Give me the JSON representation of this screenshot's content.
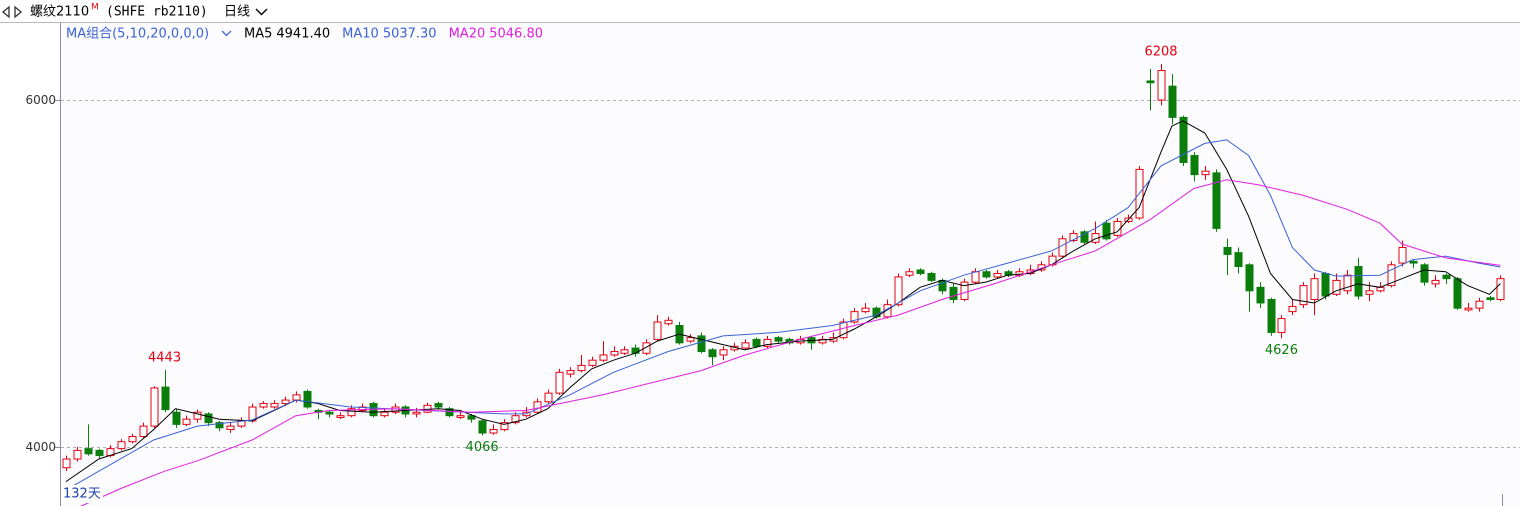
{
  "header": {
    "symbol": "螺纹2110",
    "badge": "M",
    "code": "(SHFE rb2110)",
    "period": "日线"
  },
  "chart_data": {
    "type": "candlestick",
    "legend_title": "MA组合(5,10,20,0,0,0)",
    "days_label": "132天",
    "up_color": "#e4000f",
    "down_color": "#0a7d0a",
    "ylim": [
      3665,
      6450
    ],
    "yticks": [
      4000,
      6000
    ],
    "grid": true,
    "open": [
      3880,
      3930,
      3990,
      3980,
      3950,
      3990,
      4030,
      4060,
      4120,
      4345,
      4200,
      4130,
      4160,
      4190,
      4140,
      4100,
      4120,
      4150,
      4230,
      4230,
      4250,
      4270,
      4320,
      4210,
      4200,
      4170,
      4180,
      4210,
      4250,
      4180,
      4200,
      4230,
      4190,
      4200,
      4250,
      4220,
      4170,
      4180,
      4150,
      4080,
      4100,
      4140,
      4180,
      4200,
      4260,
      4310,
      4420,
      4440,
      4470,
      4500,
      4530,
      4540,
      4570,
      4540,
      4620,
      4710,
      4700,
      4610,
      4640,
      4560,
      4530,
      4560,
      4570,
      4620,
      4580,
      4630,
      4620,
      4600,
      4630,
      4600,
      4610,
      4630,
      4720,
      4780,
      4800,
      4750,
      4820,
      4990,
      5020,
      5000,
      4960,
      4920,
      4850,
      4950,
      5010,
      4980,
      5010,
      4990,
      5000,
      5020,
      5050,
      5100,
      5190,
      5240,
      5180,
      5290,
      5220,
      5300,
      5320,
      6110,
      6000,
      6080,
      5900,
      5680,
      5570,
      5580,
      5150,
      5120,
      5050,
      4920,
      4850,
      4660,
      4780,
      4820,
      4850,
      5000,
      4880,
      4900,
      5040,
      4880,
      4900,
      4930,
      5060,
      5070,
      5050,
      4940,
      4990,
      4970,
      4790,
      4800,
      4860,
      4850
    ],
    "high": [
      3950,
      4000,
      4130,
      3990,
      4010,
      4045,
      4075,
      4140,
      4350,
      4443,
      4220,
      4180,
      4215,
      4200,
      4150,
      4140,
      4170,
      4250,
      4265,
      4270,
      4290,
      4320,
      4330,
      4220,
      4210,
      4200,
      4240,
      4250,
      4260,
      4220,
      4250,
      4240,
      4225,
      4255,
      4260,
      4230,
      4200,
      4190,
      4160,
      4130,
      4160,
      4200,
      4230,
      4280,
      4330,
      4450,
      4460,
      4530,
      4520,
      4610,
      4580,
      4580,
      4590,
      4620,
      4760,
      4750,
      4720,
      4650,
      4660,
      4570,
      4580,
      4600,
      4620,
      4630,
      4640,
      4640,
      4630,
      4640,
      4640,
      4640,
      4660,
      4740,
      4800,
      4830,
      4810,
      4850,
      5000,
      5030,
      5030,
      5010,
      4970,
      4940,
      4970,
      5030,
      5020,
      5020,
      5020,
      5030,
      5050,
      5070,
      5120,
      5220,
      5250,
      5250,
      5300,
      5310,
      5320,
      5340,
      5620,
      6180,
      6208,
      6150,
      5910,
      5700,
      5620,
      5600,
      5200,
      5150,
      5060,
      4950,
      4860,
      4760,
      4850,
      4950,
      5000,
      5010,
      5000,
      5020,
      5090,
      4950,
      4950,
      5070,
      5190,
      5080,
      5060,
      4990,
      5000,
      4980,
      4830,
      4860,
      4870,
      4990
    ],
    "low": [
      3860,
      3915,
      3950,
      3935,
      3940,
      3980,
      4020,
      4050,
      4110,
      4200,
      4110,
      4120,
      4140,
      4120,
      4090,
      4080,
      4110,
      4140,
      4220,
      4220,
      4235,
      4255,
      4220,
      4160,
      4170,
      4160,
      4170,
      4200,
      4170,
      4170,
      4190,
      4170,
      4170,
      4195,
      4215,
      4170,
      4160,
      4140,
      4066,
      4070,
      4090,
      4130,
      4170,
      4190,
      4250,
      4300,
      4400,
      4430,
      4460,
      4490,
      4520,
      4530,
      4520,
      4530,
      4610,
      4700,
      4590,
      4600,
      4540,
      4470,
      4500,
      4550,
      4560,
      4570,
      4570,
      4600,
      4590,
      4590,
      4560,
      4590,
      4600,
      4620,
      4710,
      4770,
      4740,
      4740,
      4810,
      4980,
      4990,
      4950,
      4880,
      4830,
      4840,
      4940,
      4970,
      4970,
      4980,
      4980,
      4990,
      5010,
      5040,
      5090,
      5180,
      5170,
      5170,
      5190,
      5210,
      5290,
      5310,
      5940,
      5970,
      5860,
      5620,
      5530,
      5540,
      5240,
      4990,
      5000,
      4780,
      4800,
      4640,
      4626,
      4760,
      4800,
      4760,
      4850,
      4870,
      4880,
      4850,
      4840,
      4890,
      4920,
      5040,
      5030,
      4930,
      4920,
      4940,
      4790,
      4780,
      4780,
      4840,
      4840
    ],
    "close": [
      3930,
      3980,
      3960,
      3950,
      3990,
      4030,
      4060,
      4120,
      4340,
      4215,
      4130,
      4160,
      4200,
      4140,
      4110,
      4120,
      4150,
      4230,
      4250,
      4250,
      4270,
      4300,
      4230,
      4200,
      4190,
      4180,
      4220,
      4230,
      4180,
      4200,
      4230,
      4190,
      4200,
      4240,
      4230,
      4180,
      4180,
      4160,
      4080,
      4100,
      4140,
      4180,
      4200,
      4260,
      4310,
      4430,
      4440,
      4470,
      4500,
      4530,
      4550,
      4560,
      4540,
      4600,
      4720,
      4730,
      4600,
      4630,
      4550,
      4520,
      4560,
      4580,
      4600,
      4580,
      4620,
      4610,
      4600,
      4620,
      4600,
      4620,
      4630,
      4720,
      4780,
      4800,
      4750,
      4820,
      4980,
      5010,
      5000,
      4960,
      4900,
      4850,
      4950,
      5010,
      4980,
      5000,
      4990,
      5010,
      5020,
      5050,
      5100,
      5200,
      5230,
      5180,
      5230,
      5200,
      5300,
      5320,
      5600,
      6100,
      6170,
      5900,
      5640,
      5570,
      5590,
      5260,
      5110,
      5040,
      4900,
      4830,
      4660,
      4740,
      4810,
      4930,
      4970,
      4870,
      4960,
      4990,
      4870,
      4900,
      4920,
      5050,
      5150,
      5060,
      4950,
      4960,
      4970,
      4800,
      4800,
      4840,
      4850,
      4970
    ],
    "annotations": [
      "4443",
      "4066",
      "6208",
      "4626"
    ],
    "ma": [
      {
        "name": "MA5",
        "label": "4941.40",
        "color": "#000000",
        "x": [
          0,
          3,
          6,
          8,
          10,
          12,
          14,
          17,
          19,
          21,
          23,
          25,
          28,
          31,
          34,
          36,
          38,
          40,
          42,
          44,
          46,
          48,
          50,
          52,
          54,
          56,
          58,
          60,
          62,
          64,
          67,
          70,
          72,
          74,
          76,
          78,
          80,
          82,
          84,
          86,
          88,
          90,
          92,
          94,
          96,
          98,
          100,
          101,
          102,
          104,
          106,
          108,
          110,
          112,
          114,
          116,
          118,
          120,
          122,
          124,
          126,
          128,
          130,
          131
        ],
        "values": [
          3800,
          3930,
          3990,
          4100,
          4220,
          4190,
          4160,
          4150,
          4210,
          4270,
          4250,
          4210,
          4200,
          4210,
          4220,
          4210,
          4160,
          4130,
          4160,
          4220,
          4340,
          4450,
          4500,
          4540,
          4610,
          4650,
          4620,
          4590,
          4560,
          4590,
          4610,
          4620,
          4680,
          4750,
          4830,
          4920,
          4960,
          4930,
          4950,
          4990,
          5000,
          5050,
          5130,
          5200,
          5240,
          5380,
          5700,
          5850,
          5880,
          5810,
          5600,
          5330,
          5000,
          4850,
          4830,
          4900,
          4940,
          4920,
          4970,
          5020,
          5010,
          4930,
          4880,
          4941.4
        ]
      },
      {
        "name": "MA10",
        "label": "5037.30",
        "color": "#3b62d6",
        "x": [
          0,
          8,
          12,
          17,
          21,
          26,
          33,
          40,
          42,
          46,
          50,
          55,
          60,
          65,
          70,
          74,
          78,
          82,
          86,
          90,
          94,
          97,
          100,
          104,
          106,
          108,
          110,
          112,
          114,
          116,
          120,
          123,
          126,
          129,
          131
        ],
        "values": [
          3752,
          4040,
          4120,
          4155,
          4270,
          4230,
          4210,
          4190,
          4190,
          4300,
          4430,
          4550,
          4640,
          4660,
          4700,
          4760,
          4900,
          4990,
          5060,
          5130,
          5260,
          5380,
          5620,
          5750,
          5770,
          5680,
          5450,
          5150,
          5020,
          4985,
          4990,
          5080,
          5100,
          5060,
          5037.3
        ]
      },
      {
        "name": "MA20",
        "label": "5046.80",
        "color": "#e21ee2",
        "x": [
          0,
          5,
          9,
          12,
          17,
          21,
          24,
          30,
          37,
          42,
          49,
          58,
          62,
          67,
          72,
          76,
          80,
          85,
          90,
          94,
          99,
          103,
          106,
          109,
          113,
          117,
          120,
          122,
          126,
          131
        ],
        "values": [
          3620,
          3760,
          3860,
          3920,
          4040,
          4180,
          4210,
          4220,
          4200,
          4210,
          4300,
          4440,
          4530,
          4620,
          4700,
          4760,
          4850,
          4945,
          5050,
          5130,
          5310,
          5490,
          5540,
          5510,
          5450,
          5370,
          5290,
          5170,
          5090,
          5046.8
        ]
      }
    ]
  }
}
